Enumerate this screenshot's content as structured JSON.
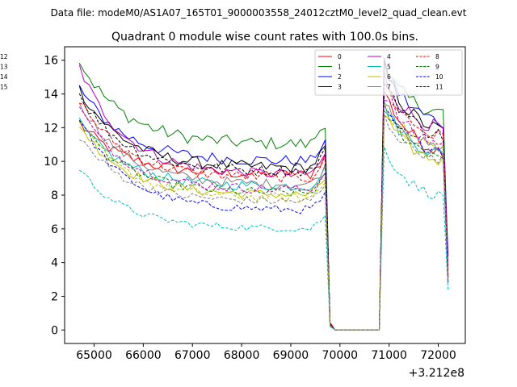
{
  "chart_data": {
    "type": "line",
    "suptitle": "Data file: modeM0/AS1A07_165T01_9000003558_24012cztM0_level2_quad_clean.evt",
    "title": "Quadrant 0 module wise count rates with 100.0s bins.",
    "xlabel": "",
    "ylabel": "",
    "x_offset_label": "+3.212e8",
    "xlim": [
      64400,
      72550
    ],
    "ylim": [
      -0.8,
      16.8
    ],
    "xticks": [
      65000,
      66000,
      67000,
      68000,
      69000,
      70000,
      71000,
      72000
    ],
    "xtick_labels": [
      "65000",
      "66000",
      "67000",
      "68000",
      "69000",
      "70000",
      "71000",
      "72000"
    ],
    "yticks": [
      0,
      2,
      4,
      6,
      8,
      10,
      12,
      14,
      16
    ],
    "ytick_labels": [
      "0",
      "2",
      "4",
      "6",
      "8",
      "10",
      "12",
      "14",
      "16"
    ],
    "legend_position": "top-right",
    "segments": [
      {
        "start": 64700,
        "end": 69700,
        "step": 100
      },
      {
        "start": 69800,
        "end": 70800,
        "step": 100
      },
      {
        "start": 70900,
        "end": 72200,
        "step": 100
      }
    ],
    "series": [
      {
        "name": "0",
        "color": "#ff0000",
        "dash": "solid",
        "start": 12.3,
        "plateau": 9.2,
        "gap_first": 0.45,
        "peak": 14.2,
        "end_before_drop": 10.6,
        "last": 3.5
      },
      {
        "name": "1",
        "color": "#008000",
        "dash": "solid",
        "start": 16.0,
        "plateau": 11.0,
        "gap_first": 0.3,
        "peak": 15.4,
        "end_before_drop": 12.9,
        "last": 3.8
      },
      {
        "name": "2",
        "color": "#0000ff",
        "dash": "solid",
        "start": 14.4,
        "plateau": 10.0,
        "gap_first": 0.3,
        "peak": 15.7,
        "end_before_drop": 12.3,
        "last": 4.4
      },
      {
        "name": "3",
        "color": "#000000",
        "dash": "solid",
        "start": 14.3,
        "plateau": 9.6,
        "gap_first": 0.35,
        "peak": 15.5,
        "end_before_drop": 11.8,
        "last": 3.1
      },
      {
        "name": "4",
        "color": "#bf00bf",
        "dash": "solid",
        "start": 15.6,
        "plateau": 9.2,
        "gap_first": 0.3,
        "peak": 15.0,
        "end_before_drop": 11.9,
        "last": 3.6
      },
      {
        "name": "5",
        "color": "#00bfbf",
        "dash": "solid",
        "start": 12.3,
        "plateau": 8.5,
        "gap_first": 0.25,
        "peak": 13.3,
        "end_before_drop": 10.4,
        "last": 3.0
      },
      {
        "name": "6",
        "color": "#bfbf00",
        "dash": "solid",
        "start": 12.2,
        "plateau": 8.0,
        "gap_first": 0.25,
        "peak": 12.8,
        "end_before_drop": 10.0,
        "last": 3.0
      },
      {
        "name": "7",
        "color": "#808080",
        "dash": "solid",
        "start": 13.6,
        "plateau": 8.6,
        "gap_first": 0.25,
        "peak": 13.8,
        "end_before_drop": 10.6,
        "last": 3.2
      },
      {
        "name": "8",
        "color": "#ff0000",
        "dash": "dashed",
        "start": 13.7,
        "plateau": 9.0,
        "gap_first": 0.3,
        "peak": 14.7,
        "end_before_drop": 11.4,
        "last": 3.3
      },
      {
        "name": "9",
        "color": "#008000",
        "dash": "dashed",
        "start": 12.5,
        "plateau": 8.1,
        "gap_first": 0.25,
        "peak": 13.2,
        "end_before_drop": 10.3,
        "last": 2.9
      },
      {
        "name": "10",
        "color": "#0000ff",
        "dash": "dashed",
        "start": 12.6,
        "plateau": 7.1,
        "gap_first": 0.25,
        "peak": 13.0,
        "end_before_drop": 10.7,
        "last": 2.8
      },
      {
        "name": "11",
        "color": "#000000",
        "dash": "dashed",
        "start": 14.0,
        "plateau": 9.4,
        "gap_first": 0.3,
        "peak": 15.0,
        "end_before_drop": 11.5,
        "last": 3.2
      },
      {
        "name": "12",
        "color": "#bf00bf",
        "dash": "dashed",
        "start": 13.2,
        "plateau": 8.3,
        "gap_first": 0.25,
        "peak": 14.0,
        "end_before_drop": 11.0,
        "last": 3.1
      },
      {
        "name": "13",
        "color": "#00bfbf",
        "dash": "dashed",
        "start": 9.6,
        "plateau": 6.0,
        "gap_first": 0.2,
        "peak": 10.8,
        "end_before_drop": 7.9,
        "last": 2.3
      },
      {
        "name": "14",
        "color": "#bfbf00",
        "dash": "dashed",
        "start": 12.4,
        "plateau": 7.8,
        "gap_first": 0.25,
        "peak": 13.4,
        "end_before_drop": 10.8,
        "last": 3.0
      },
      {
        "name": "15",
        "color": "#808080",
        "dash": "dashed",
        "start": 11.5,
        "plateau": 7.6,
        "gap_first": 0.25,
        "peak": 12.6,
        "end_before_drop": 10.2,
        "last": 2.9
      }
    ]
  }
}
